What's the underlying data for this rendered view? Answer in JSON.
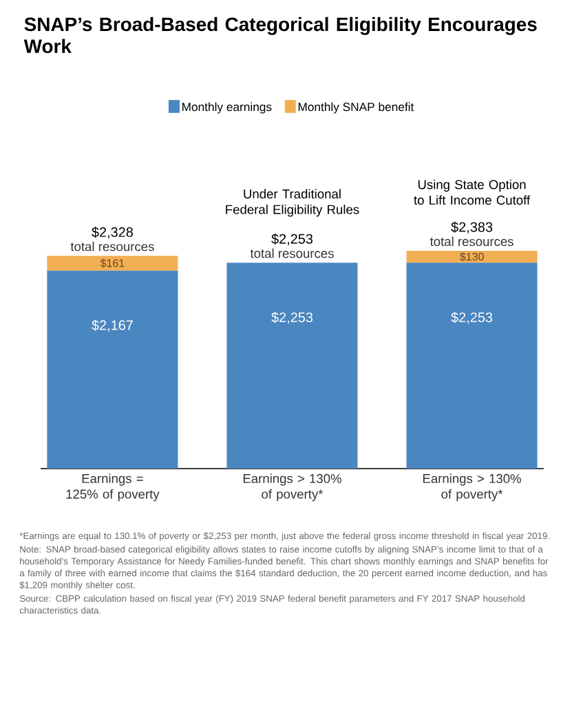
{
  "chart_data": {
    "type": "bar",
    "stacked": true,
    "title": "SNAP’s Broad-Based Categorical Eligibility Encourages Work",
    "categories": [
      "Earnings = 125% of poverty",
      "Earnings > 130% of poverty*",
      "Earnings > 130% of poverty*"
    ],
    "series": [
      {
        "name": "Monthly earnings",
        "color": "#4a86c0",
        "values": [
          2167,
          2253,
          2253
        ],
        "value_labels": [
          "$2,167",
          "$2,253",
          "$2,253"
        ]
      },
      {
        "name": "Monthly SNAP benefit",
        "color": "#f2ae52",
        "values": [
          161,
          0,
          130
        ],
        "value_labels": [
          "$161",
          null,
          "$130"
        ]
      }
    ],
    "totals": [
      "$2,328",
      "$2,253",
      "$2,383"
    ],
    "legend": "top",
    "annotations": [
      "total resources",
      "total resources",
      "Under Traditional Federal Eligibility Rules",
      "total resources",
      "Using State Option to Lift Income Cutoff",
      "*Earnings are equal to 130.1% of poverty or $2,253 per month, just above the federal gross income threshold in fiscal year 2019.",
      "Note: SNAP broad-based categorical eligibility allows states to raise income cutoffs by aligning SNAP’s income limit to that of a household’s Temporary Assistance for Needy Families-funded benefit. This chart shows monthly earnings and SNAP benefits for a family of three with earned income that claims the $164 standard deduction, the 20 percent earned income deduction, and has $1,209 monthly shelter cost.",
      "Source: CBPP calculation based on fiscal year (FY) 2019 SNAP federal benefit parameters and FY 2017 SNAP household characteristics data."
    ]
  }
}
